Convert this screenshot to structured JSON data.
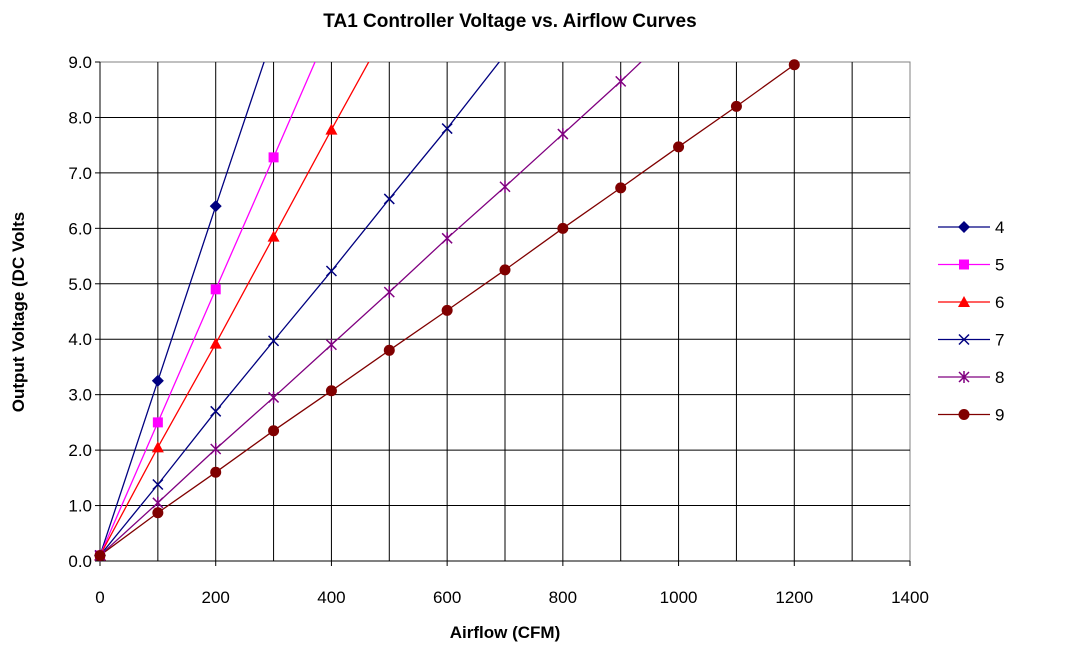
{
  "chart_data": {
    "type": "line",
    "title": "TA1 Controller Voltage vs. Airflow Curves",
    "xlabel": "Airflow (CFM)",
    "ylabel": "Output Voltage (DC Volts",
    "xlim": [
      0,
      1400
    ],
    "ylim": [
      0,
      9
    ],
    "xticks": [
      "0",
      "200",
      "400",
      "600",
      "800",
      "1000",
      "1200",
      "1400"
    ],
    "yticks": [
      "0.0",
      "1.0",
      "2.0",
      "3.0",
      "4.0",
      "5.0",
      "6.0",
      "7.0",
      "8.0",
      "9.0"
    ],
    "grid": true,
    "legend_position": "right",
    "series": [
      {
        "name": "4",
        "color": "#000080",
        "marker": "diamond",
        "points": [
          [
            0,
            0.1
          ],
          [
            100,
            3.25
          ],
          [
            200,
            6.4
          ]
        ],
        "trend_end": [
          290,
          9.2
        ]
      },
      {
        "name": "5",
        "color": "#ff00ff",
        "marker": "square",
        "points": [
          [
            0,
            0.1
          ],
          [
            100,
            2.5
          ],
          [
            200,
            4.9
          ],
          [
            300,
            7.28
          ]
        ],
        "trend_end": [
          380,
          9.2
        ]
      },
      {
        "name": "6",
        "color": "#ff0000",
        "marker": "triangle",
        "points": [
          [
            0,
            0.1
          ],
          [
            100,
            2.05
          ],
          [
            200,
            3.92
          ],
          [
            300,
            5.85
          ],
          [
            400,
            7.78
          ]
        ],
        "trend_end": [
          475,
          9.2
        ]
      },
      {
        "name": "7",
        "color": "#000080",
        "marker": "x",
        "points": [
          [
            0,
            0.1
          ],
          [
            100,
            1.38
          ],
          [
            200,
            2.7
          ],
          [
            300,
            3.97
          ],
          [
            400,
            5.23
          ],
          [
            500,
            6.53
          ],
          [
            600,
            7.8
          ]
        ],
        "trend_end": [
          705,
          9.2
        ]
      },
      {
        "name": "8",
        "color": "#800080",
        "marker": "star",
        "points": [
          [
            0,
            0.1
          ],
          [
            100,
            1.05
          ],
          [
            200,
            2.02
          ],
          [
            300,
            2.95
          ],
          [
            400,
            3.9
          ],
          [
            500,
            4.85
          ],
          [
            600,
            5.82
          ],
          [
            700,
            6.75
          ],
          [
            800,
            7.7
          ],
          [
            900,
            8.65
          ]
        ],
        "trend_end": [
          955,
          9.2
        ]
      },
      {
        "name": "9",
        "color": "#800000",
        "marker": "circle",
        "points": [
          [
            0,
            0.1
          ],
          [
            100,
            0.87
          ],
          [
            200,
            1.6
          ],
          [
            300,
            2.35
          ],
          [
            400,
            3.07
          ],
          [
            500,
            3.8
          ],
          [
            600,
            4.52
          ],
          [
            700,
            5.25
          ],
          [
            800,
            6.0
          ],
          [
            900,
            6.73
          ],
          [
            1000,
            7.47
          ],
          [
            1100,
            8.2
          ],
          [
            1200,
            8.95
          ]
        ],
        "trend_end": [
          1230,
          9.2
        ]
      }
    ]
  }
}
